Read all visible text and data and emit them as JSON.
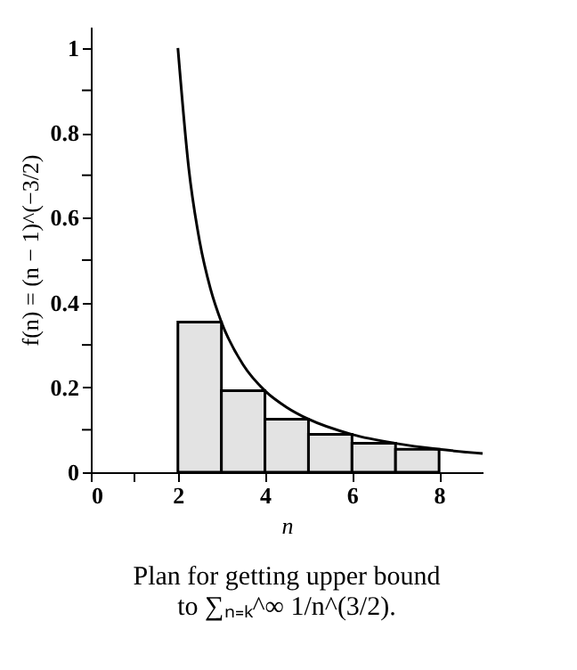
{
  "chart_data": {
    "type": "histogram",
    "bins": [
      2,
      3,
      4,
      5,
      6,
      7,
      8
    ],
    "values": [
      0.354,
      0.192,
      0.125,
      0.089,
      0.068,
      0.054
    ],
    "color": "#e3e3e3",
    "series": [
      {
        "type": "line",
        "color": "#000000",
        "x": [
          2,
          2.25,
          2.5,
          2.75,
          3,
          3.5,
          4,
          4.5,
          5,
          6,
          7,
          8,
          9
        ],
        "values": [
          1,
          0.716,
          0.544,
          0.432,
          0.354,
          0.253,
          0.192,
          0.153,
          0.125,
          0.089,
          0.068,
          0.054,
          0.044
        ]
      }
    ],
    "xlabel": "n",
    "ylabel": "f(n) = (n − 1)^(−3/2)",
    "xlim": [
      0,
      9
    ],
    "xticks": [
      0,
      {
        "value": 1,
        "label": null
      },
      2,
      4,
      6,
      8
    ],
    "ylim": [
      0,
      1.05
    ],
    "yticks": [
      0,
      {
        "value": 0.1,
        "label": null
      },
      0.2,
      {
        "value": 0.3,
        "label": null
      },
      0.4,
      {
        "value": 0.5,
        "label": null
      },
      0.6,
      {
        "value": 0.7,
        "label": null
      },
      0.8,
      {
        "value": 0.9,
        "label": null
      },
      1
    ],
    "annotations": [
      "Plan for getting upper bound",
      "to ∑ₙ₌ₖ^∞ 1/n^(3/2)."
    ]
  }
}
